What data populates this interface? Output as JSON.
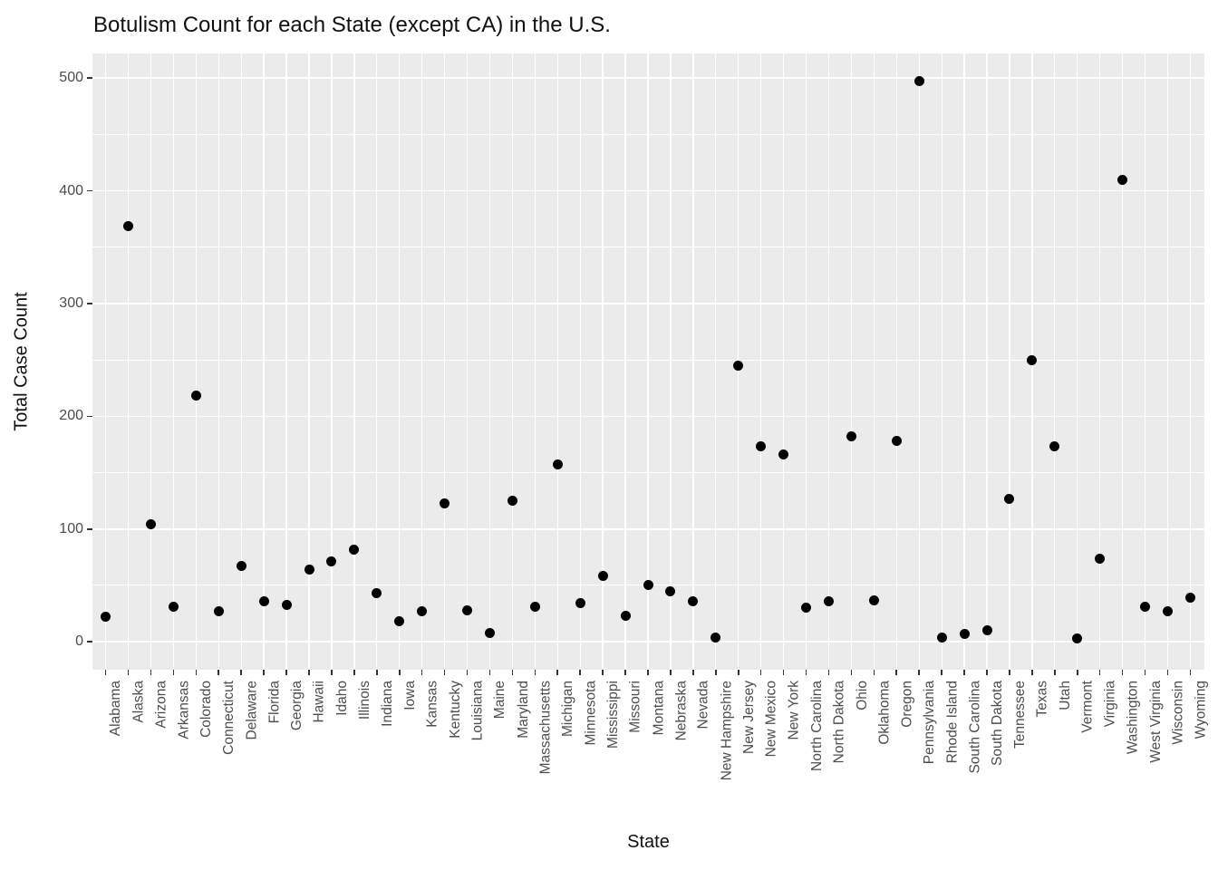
{
  "title": "Botulism Count for each State (except CA) in the U.S.",
  "x_axis": {
    "label": "State"
  },
  "y_axis": {
    "label": "Total Case Count",
    "tick_labels": [
      "0",
      "100",
      "200",
      "300",
      "400",
      "500"
    ]
  },
  "theme": {
    "panel_background": "#EBEBEB",
    "gridline_color": "#ffffff",
    "point_color": "#000000",
    "axis_text_color": "#4D4D4D",
    "tick_mark_color": "#333333",
    "title_color": "#111111"
  },
  "chart_data": {
    "type": "scatter",
    "title": "Botulism Count for each State (except CA) in the U.S.",
    "xlabel": "State",
    "ylabel": "Total Case Count",
    "ylim": [
      -25,
      522
    ],
    "y_major_ticks": [
      0,
      100,
      200,
      300,
      400,
      500
    ],
    "y_minor_ticks": [
      50,
      150,
      250,
      350,
      450
    ],
    "grid": true,
    "legend": "none",
    "categories": [
      "Alabama",
      "Alaska",
      "Arizona",
      "Arkansas",
      "Colorado",
      "Connecticut",
      "Delaware",
      "Florida",
      "Georgia",
      "Hawaii",
      "Idaho",
      "Illinois",
      "Indiana",
      "Iowa",
      "Kansas",
      "Kentucky",
      "Louisiana",
      "Maine",
      "Maryland",
      "Massachusetts",
      "Michigan",
      "Minnesota",
      "Mississippi",
      "Missouri",
      "Montana",
      "Nebraska",
      "Nevada",
      "New Hampshire",
      "New Jersey",
      "New Mexico",
      "New York",
      "North Carolina",
      "North Dakota",
      "Ohio",
      "Oklahoma",
      "Oregon",
      "Pennsylvania",
      "Rhode Island",
      "South Carolina",
      "South Dakota",
      "Tennessee",
      "Texas",
      "Utah",
      "Vermont",
      "Virginia",
      "Washington",
      "West Virginia",
      "Wisconsin",
      "Wyoming"
    ],
    "values": [
      22,
      369,
      104,
      31,
      218,
      27,
      67,
      36,
      33,
      64,
      71,
      82,
      43,
      18,
      27,
      123,
      28,
      8,
      125,
      31,
      157,
      34,
      58,
      23,
      50,
      45,
      36,
      4,
      245,
      173,
      166,
      30,
      36,
      182,
      37,
      178,
      497,
      4,
      7,
      10,
      127,
      250,
      173,
      3,
      74,
      410,
      31,
      27,
      39
    ]
  }
}
